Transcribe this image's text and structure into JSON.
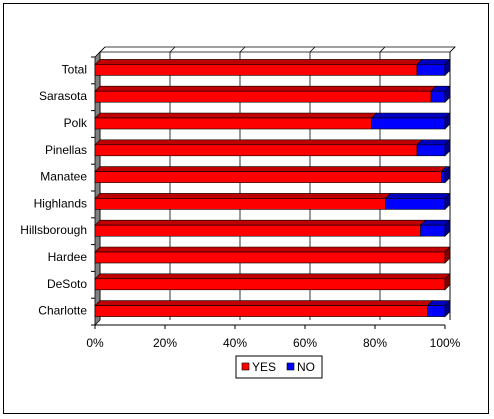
{
  "chart_data": {
    "type": "bar",
    "orientation": "horizontal",
    "stacked": true,
    "percent_stacked": true,
    "style": "3d",
    "categories": [
      "Total",
      "Sarasota",
      "Polk",
      "Pinellas",
      "Manatee",
      "Highlands",
      "Hillsborough",
      "Hardee",
      "DeSoto",
      "Charlotte"
    ],
    "series": [
      {
        "name": "YES",
        "color": "#ff0000",
        "values": [
          92,
          96,
          79,
          92,
          99,
          83,
          93,
          100,
          100,
          95
        ]
      },
      {
        "name": "NO",
        "color": "#0000ff",
        "values": [
          8,
          4,
          21,
          8,
          1,
          17,
          7,
          0,
          0,
          5
        ]
      }
    ],
    "x_ticks": [
      "0%",
      "20%",
      "40%",
      "60%",
      "80%",
      "100%"
    ],
    "xlim": [
      0,
      100
    ],
    "grid": true,
    "legend_position": "bottom",
    "title": "",
    "xlabel": "",
    "ylabel": ""
  }
}
